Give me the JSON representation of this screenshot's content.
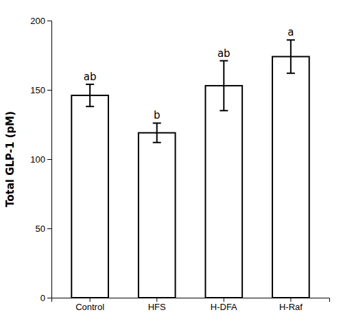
{
  "chart_data": {
    "type": "bar",
    "categories": [
      "Control",
      "HFS",
      "H-DFA",
      "H-Raf"
    ],
    "values": [
      146,
      119,
      153,
      174
    ],
    "errors": [
      8,
      7,
      18,
      12
    ],
    "annotations": [
      "ab",
      "b",
      "ab",
      "a"
    ],
    "ylabel": "Total GLP-1 (pM)",
    "color": "#ffffff",
    "ylim": [
      0,
      200
    ],
    "yticks": [
      0,
      50,
      100,
      150,
      200
    ],
    "grid": false
  }
}
